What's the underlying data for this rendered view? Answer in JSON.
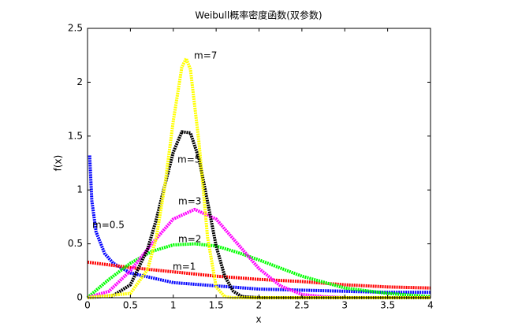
{
  "chart_data": {
    "type": "line",
    "title": "Weibull概率密度函数(双参数)",
    "xlabel": "x",
    "ylabel": "f(x)",
    "xlim": [
      0,
      4
    ],
    "ylim": [
      0,
      2.5
    ],
    "xticks": [
      0,
      0.5,
      1,
      1.5,
      2,
      2.5,
      3,
      3.5,
      4
    ],
    "yticks": [
      0,
      0.5,
      1,
      1.5,
      2,
      2.5
    ],
    "grid": false,
    "series": [
      {
        "name": "m=0.5",
        "color": "#0000ff",
        "x": [
          0.025,
          0.05,
          0.1,
          0.2,
          0.3,
          0.5,
          1,
          1.5,
          2,
          2.5,
          3,
          3.5,
          4
        ],
        "values": [
          1.32,
          0.9,
          0.61,
          0.41,
          0.32,
          0.23,
          0.14,
          0.11,
          0.08,
          0.07,
          0.06,
          0.05,
          0.05
        ]
      },
      {
        "name": "m=1",
        "color": "#ff0000",
        "x": [
          0,
          0.5,
          1,
          1.5,
          2,
          2.5,
          3,
          3.5,
          4
        ],
        "values": [
          0.33,
          0.28,
          0.24,
          0.2,
          0.17,
          0.15,
          0.12,
          0.1,
          0.09
        ]
      },
      {
        "name": "m=2",
        "color": "#00ff00",
        "x": [
          0,
          0.25,
          0.5,
          0.75,
          1,
          1.25,
          1.5,
          1.75,
          2,
          2.5,
          3,
          3.5,
          4
        ],
        "values": [
          0,
          0.17,
          0.32,
          0.43,
          0.49,
          0.5,
          0.48,
          0.42,
          0.35,
          0.2,
          0.09,
          0.04,
          0.01
        ]
      },
      {
        "name": "m=3",
        "color": "#ff00ff",
        "x": [
          0,
          0.25,
          0.5,
          0.75,
          1,
          1.25,
          1.5,
          1.75,
          2,
          2.25,
          2.5,
          2.75,
          3,
          4
        ],
        "values": [
          0,
          0.06,
          0.25,
          0.5,
          0.73,
          0.82,
          0.73,
          0.5,
          0.27,
          0.11,
          0.03,
          0.01,
          0,
          0
        ]
      },
      {
        "name": "m=5",
        "color": "#000000",
        "x": [
          0,
          0.3,
          0.5,
          0.7,
          0.8,
          0.9,
          1,
          1.1,
          1.2,
          1.3,
          1.4,
          1.5,
          1.6,
          1.7,
          1.8,
          2,
          4
        ],
        "values": [
          0,
          0.02,
          0.12,
          0.45,
          0.72,
          1.04,
          1.35,
          1.54,
          1.53,
          1.29,
          0.89,
          0.48,
          0.2,
          0.06,
          0.01,
          0,
          0
        ]
      },
      {
        "name": "m=7",
        "color": "#ffff00",
        "x": [
          0,
          0.5,
          0.7,
          0.8,
          0.9,
          1,
          1.1,
          1.15,
          1.2,
          1.3,
          1.4,
          1.5,
          1.6,
          1.7,
          4
        ],
        "values": [
          0,
          0.04,
          0.26,
          0.55,
          1.03,
          1.64,
          2.14,
          2.22,
          2.12,
          1.44,
          0.56,
          0.1,
          0.01,
          0,
          0
        ]
      }
    ]
  }
}
